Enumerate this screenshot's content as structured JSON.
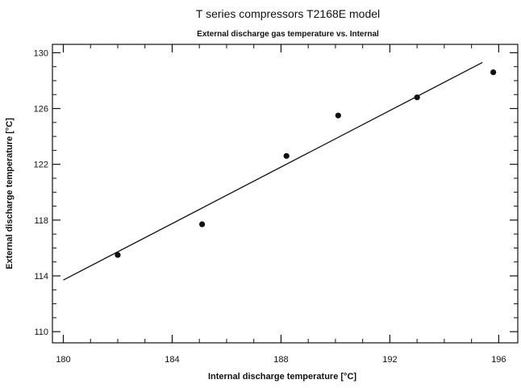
{
  "chart_data": {
    "type": "scatter",
    "title": "T series compressors    T2168E model",
    "subtitle": "External discharge gas temperature  vs. Internal",
    "xlabel": "Internal discharge temperature [°C]",
    "ylabel": "External discharge temperature [°C]",
    "xlim": [
      179.6,
      196.7
    ],
    "ylim": [
      109.2,
      130.6
    ],
    "xticks": [
      180,
      184,
      188,
      192,
      196
    ],
    "yticks": [
      110,
      114,
      118,
      122,
      126,
      130
    ],
    "xtick_labels": [
      "180",
      "184",
      "188",
      "192",
      "196"
    ],
    "ytick_labels": [
      "110",
      "114",
      "118",
      "122",
      "126",
      "130"
    ],
    "grid": false,
    "series": [
      {
        "type": "scatter",
        "points": [
          {
            "x": 182.0,
            "y": 115.5
          },
          {
            "x": 185.1,
            "y": 117.7
          },
          {
            "x": 188.2,
            "y": 122.6
          },
          {
            "x": 190.1,
            "y": 125.5
          },
          {
            "x": 193.0,
            "y": 126.8
          },
          {
            "x": 195.8,
            "y": 128.6
          }
        ]
      },
      {
        "type": "line",
        "points": [
          {
            "x": 180.0,
            "y": 113.7
          },
          {
            "x": 195.4,
            "y": 129.3
          }
        ]
      }
    ]
  }
}
